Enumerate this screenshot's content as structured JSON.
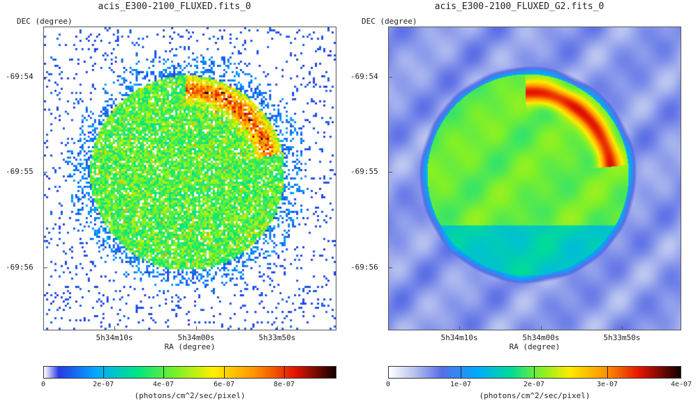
{
  "chart_data": [
    {
      "type": "heatmap",
      "title": "acis_E300-2100_FLUXED.fits_0",
      "ylabel": "DEC (degree)",
      "xlabel": "RA (degree)",
      "yticks": [
        "-69:54",
        "-69:55",
        "-69:56"
      ],
      "xticks": [
        "5h34m10s",
        "5h34m00s",
        "5h33m50s"
      ],
      "colorbar": {
        "range": [
          0,
          9.7e-07
        ],
        "ticks": [
          "0",
          "2e-07",
          "4e-07",
          "6e-07",
          "8e-07"
        ],
        "tick_values": [
          0,
          2e-07,
          4e-07,
          6e-07,
          8e-07
        ],
        "label": "(photons/cm^2/sec/pixel)"
      },
      "style": "noisy"
    },
    {
      "type": "heatmap",
      "title": "acis_E300-2100_FLUXED_G2.fits_0",
      "ylabel": "DEC (degree)",
      "xlabel": "RA (degree)",
      "yticks": [
        "-69:54",
        "-69:55",
        "-69:56"
      ],
      "xticks": [
        "5h34m10s",
        "5h34m00s",
        "5h33m50s"
      ],
      "colorbar": {
        "range": [
          0,
          4e-07
        ],
        "ticks": [
          "0",
          "1e-07",
          "2e-07",
          "3e-07",
          "4e-07"
        ],
        "tick_values": [
          0,
          1e-07,
          2e-07,
          3e-07,
          4e-07
        ],
        "label": "(photons/cm^2/sec/pixel)"
      },
      "style": "smoothed"
    }
  ]
}
